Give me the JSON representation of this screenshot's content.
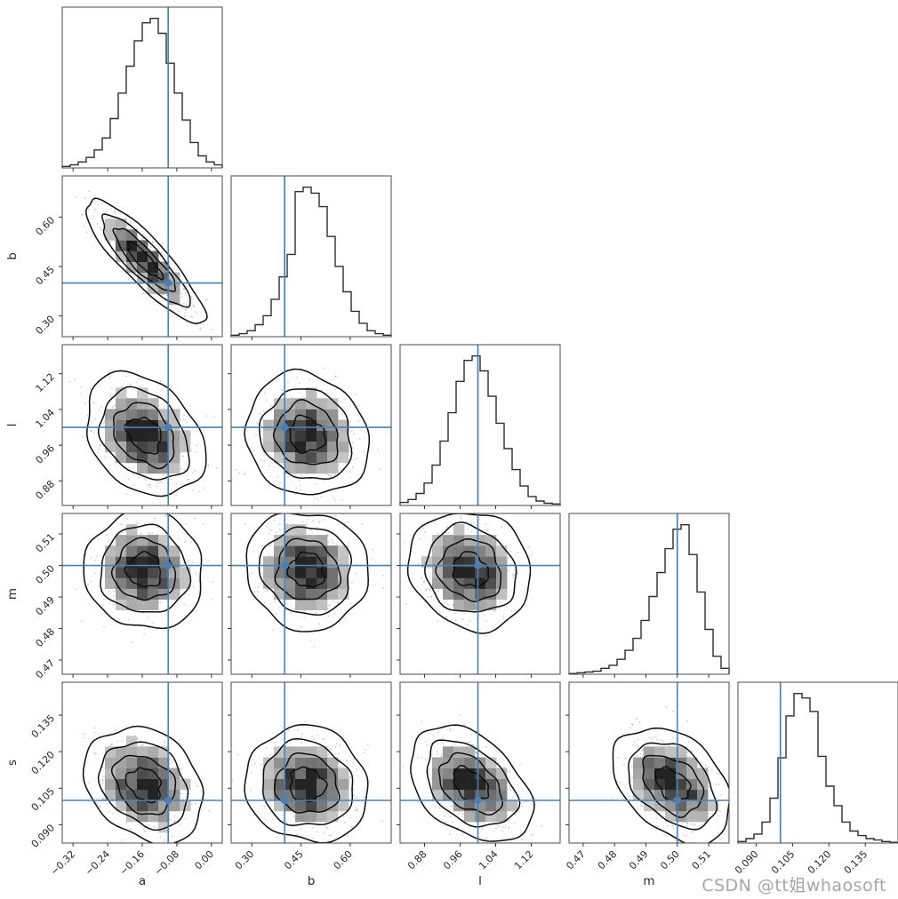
{
  "watermark": {
    "text": "CSDN @tt姐whaosoft"
  },
  "colors": {
    "truth": "#4c80b4",
    "hist": "#2d2d2d",
    "contour": "#0d0d0d",
    "scatter": "rgba(130,130,130,0.4)",
    "frame": "#4a4a4a",
    "tick": "#333333",
    "watermark": "#a6a6a6"
  },
  "chart_data": {
    "type": "scatter",
    "subtype": "corner-posterior-matrix",
    "description": "5x5 corner plot: diagonal = 1D marginal step histograms, lower triangle = 2D density (grayscale histogram + contours + sample scatter), blue crosshairs mark truth values",
    "legend": "none",
    "grid": false,
    "parameters": [
      {
        "name": "a",
        "xlabel": "a",
        "ylabel": "",
        "range": [
          -0.345,
          0.025
        ],
        "truth": -0.1,
        "mean": -0.155,
        "sigma": 0.055,
        "ticks": [
          {
            "value": -0.32,
            "label": "−0.32"
          },
          {
            "value": -0.24,
            "label": "−0.24"
          },
          {
            "value": -0.16,
            "label": "−0.16"
          },
          {
            "value": -0.08,
            "label": "−0.08"
          },
          {
            "value": 0.0,
            "label": "0.00"
          }
        ],
        "hist": [
          0.01,
          0.02,
          0.04,
          0.07,
          0.12,
          0.2,
          0.33,
          0.5,
          0.68,
          0.85,
          0.97,
          1.0,
          0.9,
          0.7,
          0.5,
          0.32,
          0.17,
          0.08,
          0.04,
          0.02
        ]
      },
      {
        "name": "b",
        "xlabel": "b",
        "ylabel": "b",
        "range": [
          0.237,
          0.725
        ],
        "truth": 0.4,
        "mean": 0.468,
        "sigma": 0.075,
        "ticks": [
          {
            "value": 0.3,
            "label": "0.30"
          },
          {
            "value": 0.45,
            "label": "0.45"
          },
          {
            "value": 0.6,
            "label": "0.60"
          }
        ],
        "hist": [
          0.01,
          0.02,
          0.04,
          0.08,
          0.14,
          0.25,
          0.4,
          0.55,
          0.97,
          1.0,
          0.96,
          0.87,
          0.67,
          0.47,
          0.3,
          0.17,
          0.09,
          0.04,
          0.02,
          0.01
        ]
      },
      {
        "name": "l",
        "xlabel": "l",
        "ylabel": "l",
        "range": [
          0.825,
          1.185
        ],
        "truth": 1.0,
        "mean": 0.983,
        "sigma": 0.055,
        "ticks": [
          {
            "value": 0.88,
            "label": "0.88"
          },
          {
            "value": 0.96,
            "label": "0.96"
          },
          {
            "value": 1.04,
            "label": "1.04"
          },
          {
            "value": 1.12,
            "label": "1.12"
          }
        ],
        "hist": [
          0.02,
          0.04,
          0.08,
          0.15,
          0.27,
          0.43,
          0.62,
          0.83,
          0.97,
          1.0,
          0.9,
          0.73,
          0.55,
          0.38,
          0.24,
          0.13,
          0.06,
          0.03,
          0.015,
          0.01
        ]
      },
      {
        "name": "m",
        "xlabel": "m",
        "ylabel": "m",
        "range": [
          0.4655,
          0.5165
        ],
        "truth": 0.5,
        "mean": 0.4985,
        "sigma": 0.0075,
        "ticks": [
          {
            "value": 0.47,
            "label": "0.47"
          },
          {
            "value": 0.48,
            "label": "0.48"
          },
          {
            "value": 0.49,
            "label": "0.49"
          },
          {
            "value": 0.5,
            "label": "0.50"
          },
          {
            "value": 0.51,
            "label": "0.51"
          }
        ],
        "hist": [
          0.005,
          0.01,
          0.015,
          0.02,
          0.04,
          0.06,
          0.1,
          0.16,
          0.24,
          0.36,
          0.52,
          0.68,
          0.84,
          0.97,
          1.0,
          0.8,
          0.55,
          0.3,
          0.12,
          0.04
        ]
      },
      {
        "name": "s",
        "xlabel": "",
        "ylabel": "s",
        "range": [
          0.0825,
          0.1485
        ],
        "truth": 0.1,
        "mean": 0.1065,
        "sigma": 0.0095,
        "ticks": [
          {
            "value": 0.09,
            "label": "0.090"
          },
          {
            "value": 0.105,
            "label": "0.105"
          },
          {
            "value": 0.12,
            "label": "0.120"
          },
          {
            "value": 0.135,
            "label": "0.135"
          }
        ],
        "hist": [
          0.01,
          0.03,
          0.06,
          0.14,
          0.3,
          0.57,
          0.85,
          1.0,
          0.97,
          0.88,
          0.58,
          0.38,
          0.25,
          0.14,
          0.08,
          0.05,
          0.03,
          0.02,
          0.01,
          0.005
        ]
      }
    ],
    "correlations": {
      "1-0": -0.87,
      "2-0": -0.3,
      "2-1": -0.12,
      "3-0": -0.04,
      "3-1": -0.06,
      "3-2": -0.12,
      "4-0": -0.25,
      "4-1": -0.08,
      "4-2": -0.4,
      "4-3": -0.38
    }
  }
}
